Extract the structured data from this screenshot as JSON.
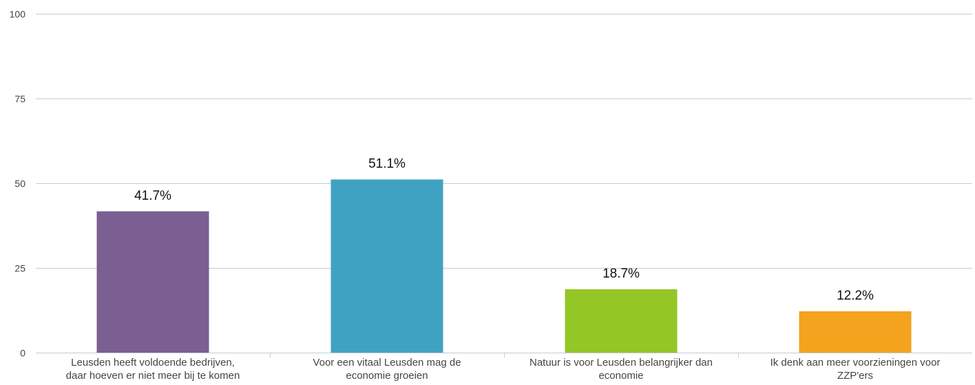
{
  "chart_data": {
    "type": "bar",
    "title": "",
    "xlabel": "",
    "ylabel": "",
    "ylim": [
      0,
      100
    ],
    "yticks": [
      0,
      25,
      50,
      75,
      100
    ],
    "grid": true,
    "legend": "none",
    "categories": [
      [
        "Leusden heeft voldoende bedrijven,",
        "daar hoeven er niet meer bij te komen"
      ],
      [
        "Voor een vitaal Leusden mag de",
        "economie groeien"
      ],
      [
        "Natuur is voor Leusden belangrijker dan",
        "economie"
      ],
      [
        "Ik denk aan meer voorzieningen voor",
        "ZZP'ers"
      ]
    ],
    "values": [
      41.7,
      51.1,
      18.7,
      12.2
    ],
    "data_labels": [
      "41.7%",
      "51.1%",
      "18.7%",
      "12.2%"
    ],
    "colors": [
      "#7b5f92",
      "#40a2c2",
      "#94c626",
      "#f3a31d"
    ],
    "gridline_color": "#c5ccd3",
    "axis_color": "#c5ccd3"
  }
}
